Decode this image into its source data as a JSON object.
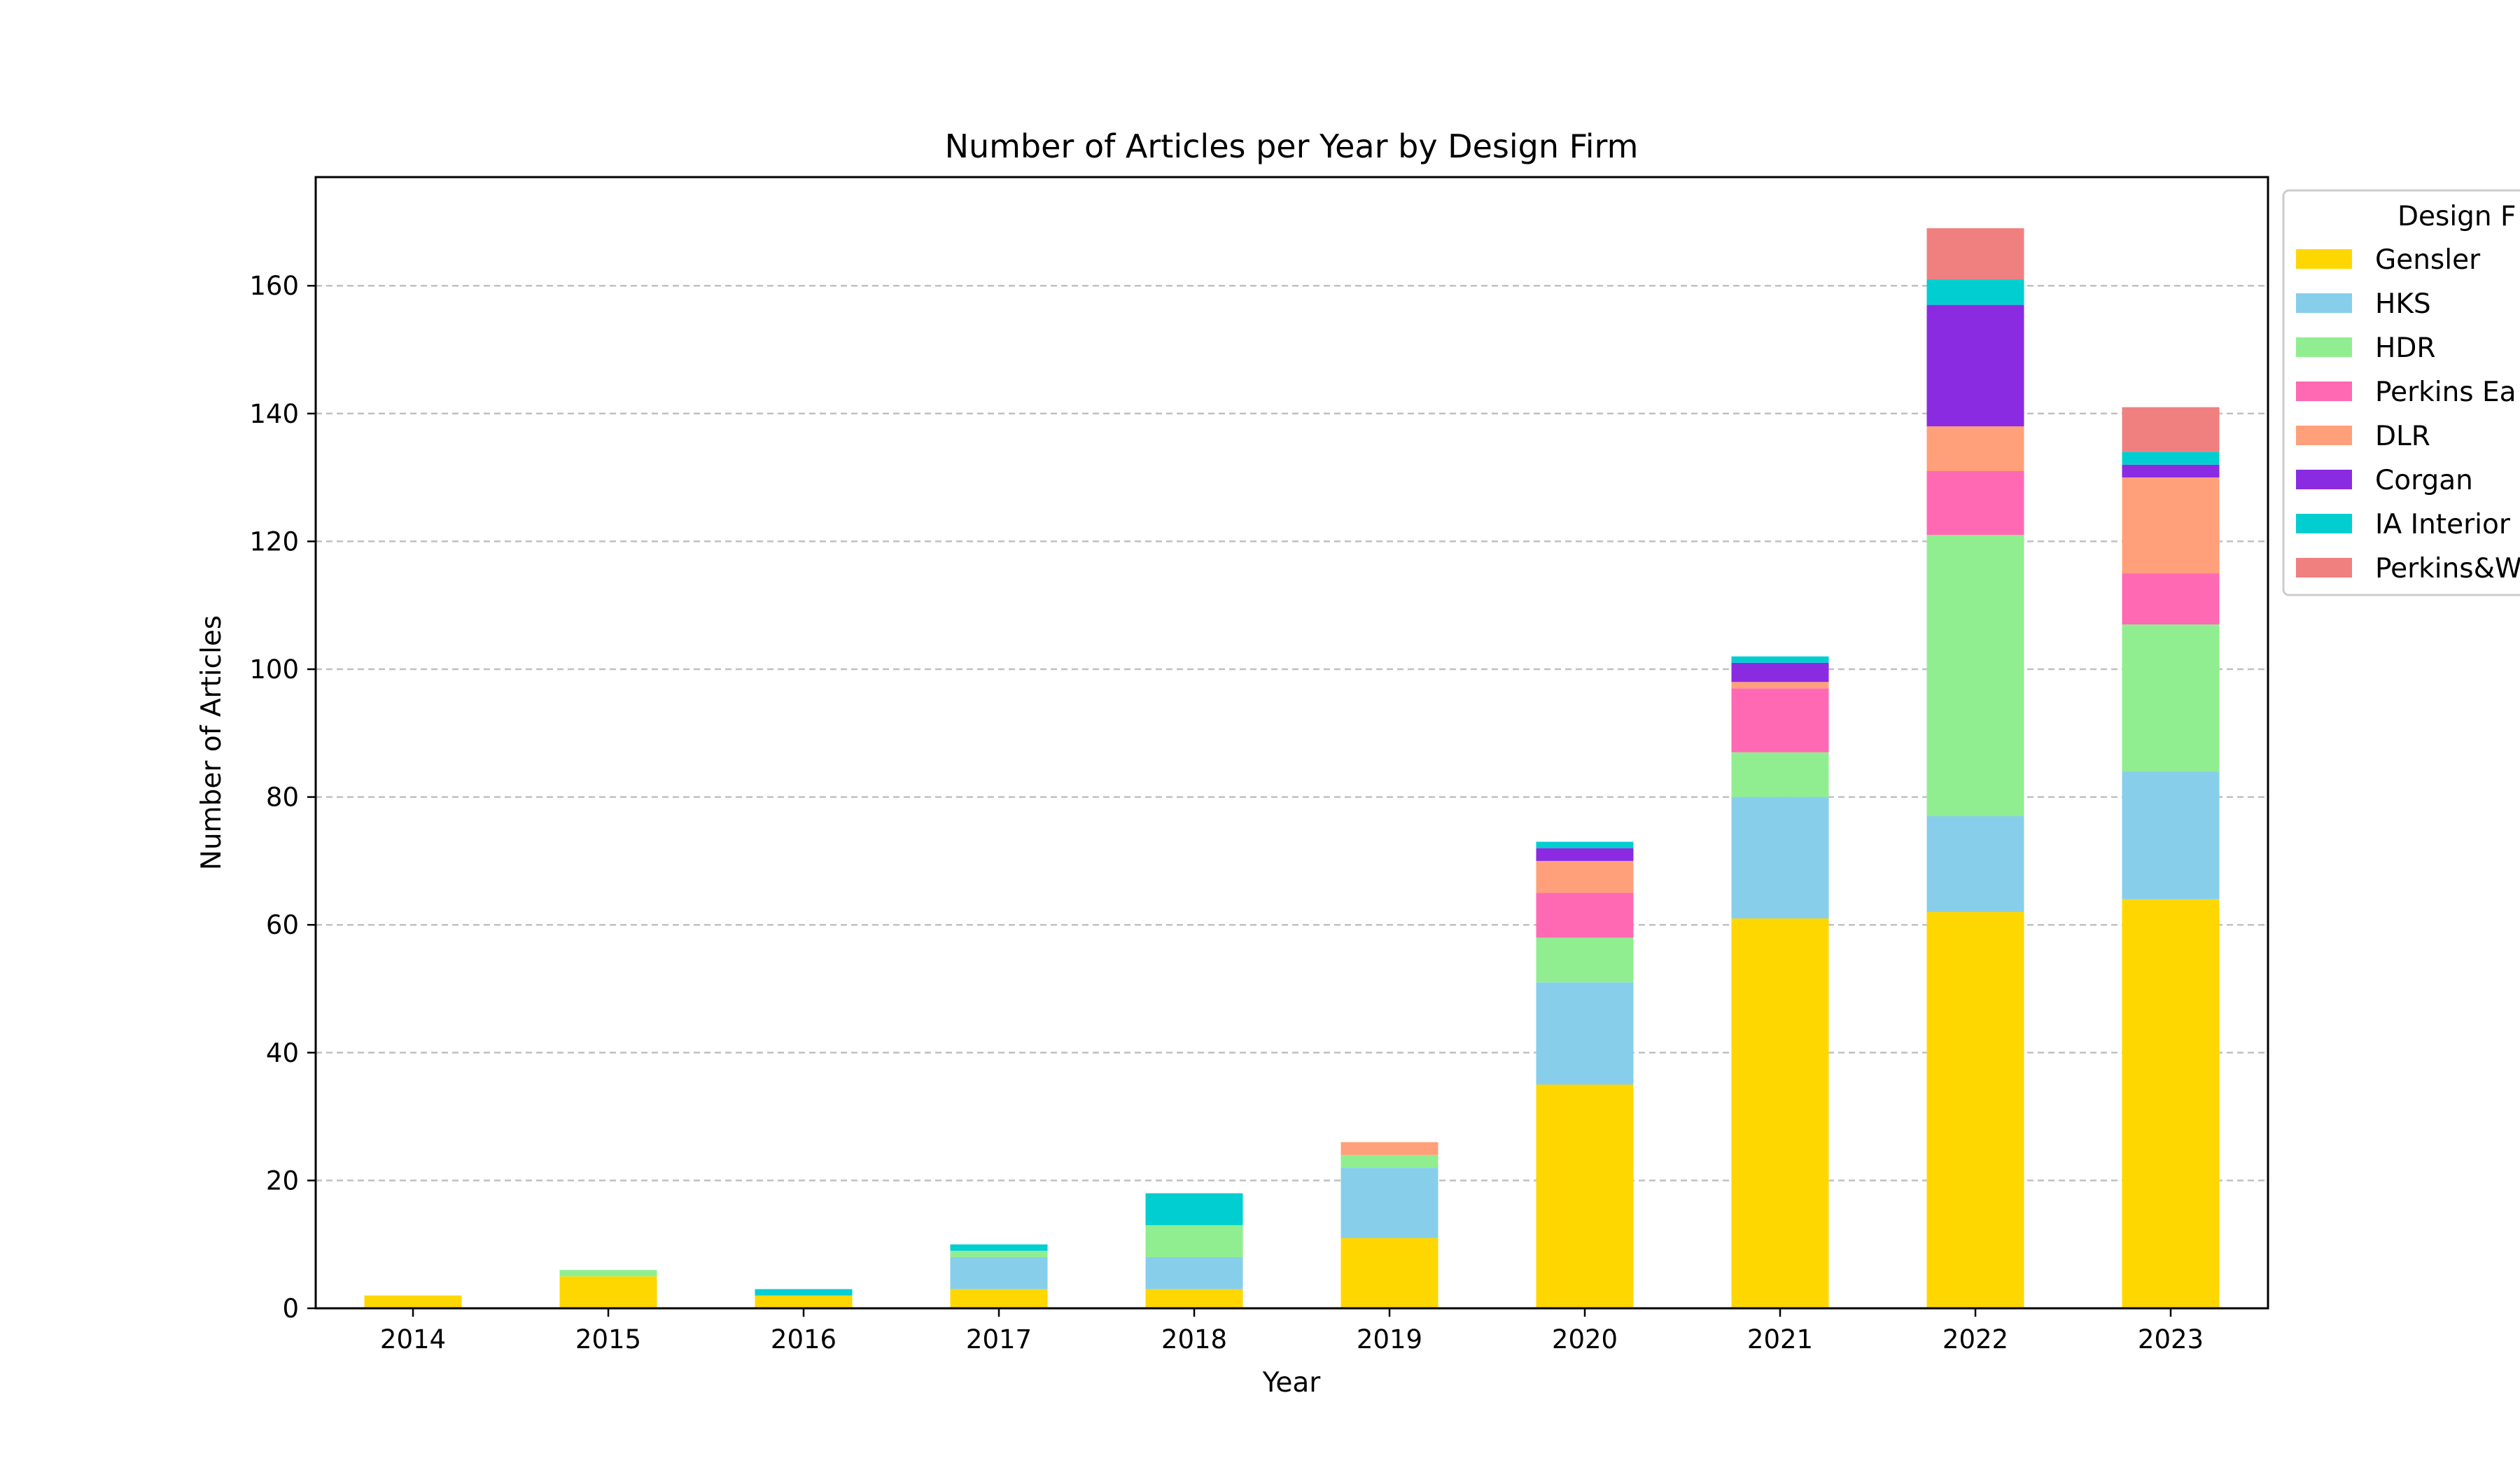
{
  "chart_data": {
    "type": "bar",
    "stacked": true,
    "title": "Number of Articles per Year by Design Firm",
    "xlabel": "Year",
    "ylabel": "Number of Articles",
    "ylim": [
      0,
      177
    ],
    "yticks": [
      0,
      20,
      40,
      60,
      80,
      100,
      120,
      140,
      160
    ],
    "grid": "y-dashed",
    "categories": [
      "2014",
      "2015",
      "2016",
      "2017",
      "2018",
      "2019",
      "2020",
      "2021",
      "2022",
      "2023"
    ],
    "legend": {
      "title": "Design F",
      "placement": "outside-right-top"
    },
    "series": [
      {
        "name": "Gensler",
        "color": "#FFD700",
        "values": [
          2,
          5,
          2,
          3,
          3,
          11,
          35,
          61,
          62,
          64
        ]
      },
      {
        "name": "HKS",
        "color": "#87CEEB",
        "values": [
          0,
          0,
          0,
          5,
          5,
          11,
          16,
          19,
          15,
          20
        ]
      },
      {
        "name": "HDR",
        "color": "#90EE90",
        "values": [
          0,
          1,
          0,
          1,
          5,
          2,
          7,
          7,
          44,
          23
        ]
      },
      {
        "name": "Perkins Ea",
        "color": "#FF69B4",
        "values": [
          0,
          0,
          0,
          0,
          0,
          0,
          7,
          10,
          10,
          8
        ]
      },
      {
        "name": "DLR",
        "color": "#FFA07A",
        "values": [
          0,
          0,
          0,
          0,
          0,
          2,
          5,
          1,
          7,
          15
        ]
      },
      {
        "name": "Corgan",
        "color": "#8A2BE2",
        "values": [
          0,
          0,
          0,
          0,
          0,
          0,
          2,
          3,
          19,
          2
        ]
      },
      {
        "name": "IA Interior",
        "color": "#00CED1",
        "values": [
          0,
          0,
          1,
          1,
          5,
          0,
          1,
          1,
          4,
          2
        ]
      },
      {
        "name": "Perkins&W",
        "color": "#F08080",
        "values": [
          0,
          0,
          0,
          0,
          0,
          0,
          0,
          0,
          8,
          7
        ]
      }
    ]
  }
}
